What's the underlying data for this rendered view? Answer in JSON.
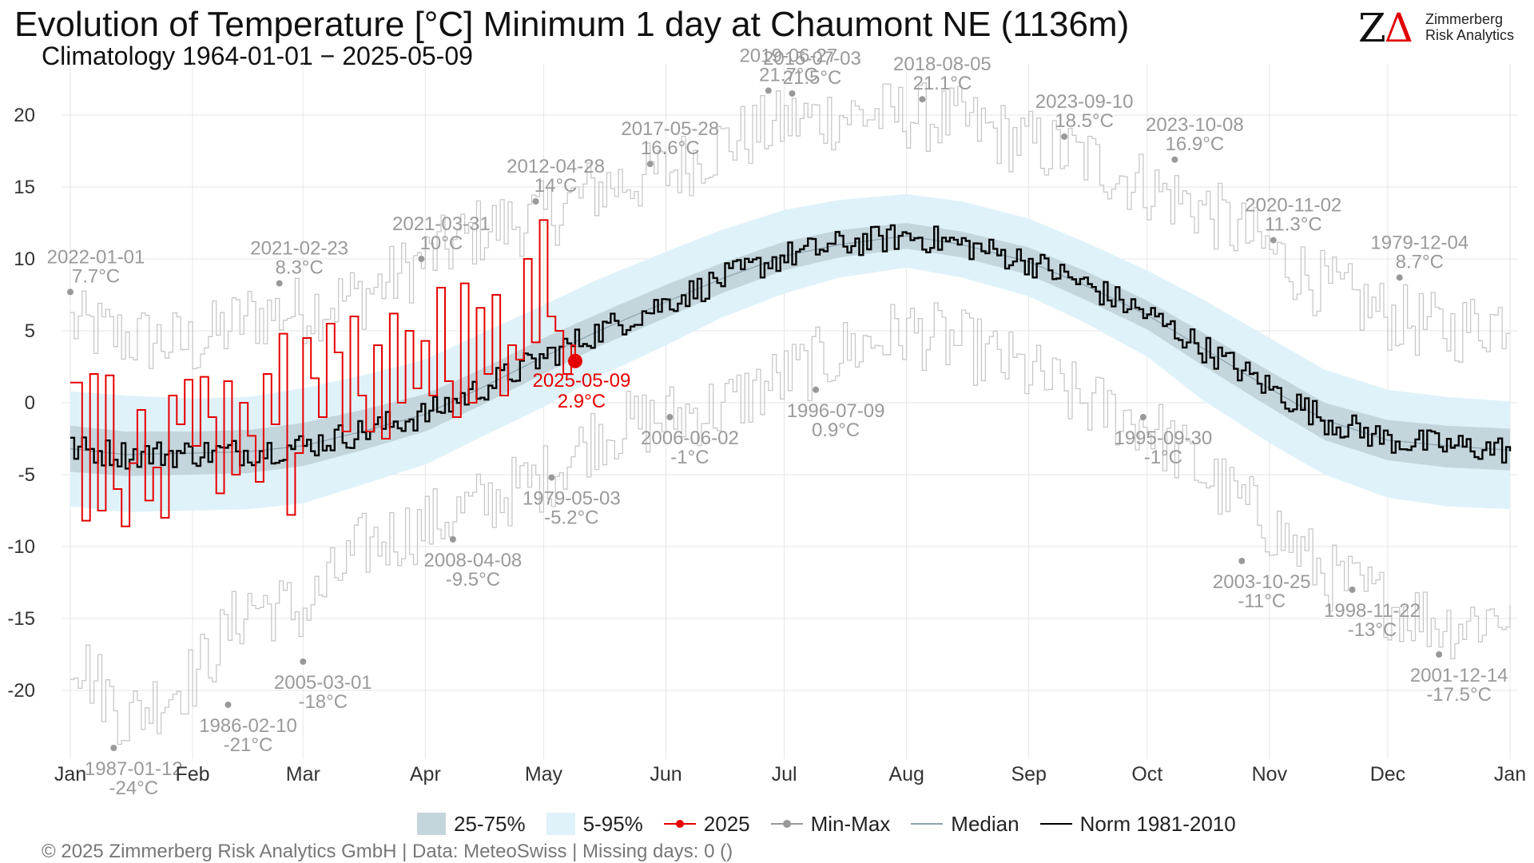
{
  "header": {
    "title": "Evolution of Temperature [°C] Minimum 1 day at Chaumont  NE (1136m)",
    "subtitle": "Climatology 1964-01-01 − 2025-05-09"
  },
  "logo": {
    "mark_left": "Z",
    "mark_right": "Δ",
    "line1": "Zimmerberg",
    "line2": "Risk Analytics"
  },
  "footer": {
    "text": "©  2025 Zimmerberg Risk Analytics GmbH | Data: MeteoSwiss | Missing days: 0 ()"
  },
  "legend": [
    {
      "label": "25-75%",
      "kind": "box",
      "color": "#c4d6dc"
    },
    {
      "label": "5-95%",
      "kind": "box",
      "color": "#dff2fa"
    },
    {
      "label": "2025",
      "kind": "pointline",
      "color": "#e60000"
    },
    {
      "label": "Min-Max",
      "kind": "pointline",
      "color": "#999999"
    },
    {
      "label": "Median",
      "kind": "line",
      "color": "#8da1ad"
    },
    {
      "label": "Norm 1981-2010",
      "kind": "line",
      "color": "#000000"
    }
  ],
  "chart_data": {
    "type": "line",
    "x_unit": "day of year",
    "ylim": [
      -24.5,
      23
    ],
    "xlim": [
      1,
      366
    ],
    "grid": true,
    "legend_position": "bottom",
    "y_ticks": [
      20,
      15,
      10,
      5,
      0,
      -5,
      -10,
      -15,
      -20
    ],
    "x_ticks": [
      {
        "label": "Jan",
        "day": 1
      },
      {
        "label": "Feb",
        "day": 32
      },
      {
        "label": "Mar",
        "day": 60
      },
      {
        "label": "Apr",
        "day": 91
      },
      {
        "label": "May",
        "day": 121
      },
      {
        "label": "Jun",
        "day": 152
      },
      {
        "label": "Jul",
        "day": 182
      },
      {
        "label": "Aug",
        "day": 213
      },
      {
        "label": "Sep",
        "day": 244
      },
      {
        "label": "Oct",
        "day": 274
      },
      {
        "label": "Nov",
        "day": 305
      },
      {
        "label": "Dec",
        "day": 335
      },
      {
        "label": "Jan",
        "day": 366
      }
    ],
    "climatology_anchors": {
      "day": [
        1,
        15,
        32,
        46,
        60,
        75,
        91,
        105,
        121,
        135,
        152,
        166,
        182,
        196,
        213,
        227,
        244,
        258,
        274,
        288,
        305,
        319,
        335,
        350,
        366
      ],
      "median": [
        -3.2,
        -3.6,
        -3.5,
        -3.4,
        -3.0,
        -2.0,
        -0.8,
        1.0,
        3.2,
        5.0,
        7.0,
        8.6,
        10.2,
        11.0,
        11.6,
        11.0,
        9.8,
        8.2,
        6.1,
        3.8,
        1.0,
        -1.2,
        -2.6,
        -3.0,
        -3.3
      ],
      "q25": [
        -4.8,
        -5.1,
        -5.0,
        -4.9,
        -4.4,
        -3.3,
        -2.0,
        -0.2,
        2.0,
        3.9,
        5.9,
        7.6,
        9.2,
        10.1,
        10.7,
        10.1,
        8.9,
        7.2,
        5.1,
        2.6,
        -0.3,
        -2.6,
        -4.0,
        -4.5,
        -4.7
      ],
      "q75": [
        -1.6,
        -2.0,
        -2.0,
        -1.9,
        -1.4,
        -0.5,
        0.6,
        2.3,
        4.5,
        6.2,
        8.2,
        9.7,
        11.2,
        12.0,
        12.5,
        11.9,
        10.8,
        9.2,
        7.1,
        4.9,
        2.2,
        0.0,
        -1.2,
        -1.6,
        -1.8
      ],
      "p5": [
        -7.2,
        -7.6,
        -7.5,
        -7.4,
        -7.0,
        -5.7,
        -4.3,
        -2.4,
        -0.3,
        1.8,
        4.0,
        5.9,
        7.6,
        8.7,
        9.4,
        8.7,
        7.4,
        5.6,
        3.2,
        0.2,
        -2.8,
        -5.0,
        -6.6,
        -7.2,
        -7.4
      ],
      "p95": [
        0.8,
        0.5,
        0.3,
        0.4,
        1.0,
        1.9,
        3.0,
        4.8,
        6.8,
        8.6,
        10.5,
        12.0,
        13.4,
        14.1,
        14.5,
        14.0,
        12.8,
        11.2,
        9.2,
        7.2,
        4.5,
        2.3,
        0.9,
        0.4,
        0.1
      ],
      "min": [
        -17.2,
        -22.0,
        -19.0,
        -14.0,
        -14.5,
        -10.0,
        -8.5,
        -7.0,
        -5.2,
        -2.0,
        -1.0,
        -0.3,
        1.8,
        3.5,
        5.0,
        4.0,
        2.0,
        0.0,
        -1.5,
        -5.0,
        -8.5,
        -12.0,
        -14.0,
        -15.5,
        -14.5
      ],
      "max": [
        5.5,
        4.5,
        4.0,
        6.0,
        6.5,
        7.5,
        10.0,
        12.0,
        13.0,
        15.0,
        16.0,
        18.0,
        19.5,
        20.0,
        20.0,
        19.5,
        18.0,
        17.0,
        15.0,
        13.5,
        10.5,
        8.0,
        6.0,
        5.0,
        6.0
      ]
    },
    "series_2025": {
      "day": [
        1,
        4,
        6,
        8,
        10,
        12,
        14,
        16,
        18,
        20,
        22,
        24,
        26,
        28,
        30,
        32,
        34,
        36,
        38,
        40,
        42,
        44,
        46,
        48,
        50,
        52,
        54,
        56,
        58,
        60,
        62,
        64,
        66,
        68,
        70,
        72,
        74,
        76,
        78,
        80,
        82,
        84,
        86,
        88,
        90,
        92,
        94,
        96,
        98,
        100,
        102,
        104,
        106,
        108,
        110,
        112,
        114,
        116,
        118,
        120,
        122,
        124,
        126,
        128,
        129
      ],
      "value": [
        1.4,
        -8.2,
        2.0,
        -7.5,
        1.9,
        -6.0,
        -8.6,
        -4.2,
        -0.5,
        -6.8,
        -4.5,
        -8.0,
        0.5,
        -1.5,
        1.6,
        -3.0,
        1.8,
        -1.0,
        -6.3,
        1.5,
        -5.0,
        0.0,
        -2.3,
        -5.5,
        2.0,
        -1.5,
        4.8,
        -7.8,
        -3.5,
        4.5,
        1.7,
        -1.0,
        5.5,
        3.5,
        -2.0,
        6.0,
        0.5,
        -2.0,
        4.0,
        -2.5,
        6.2,
        0.0,
        5.0,
        1.0,
        4.3,
        0.5,
        8.0,
        1.5,
        -1.0,
        8.3,
        0.0,
        6.6,
        2.0,
        7.5,
        0.5,
        4.0,
        3.0,
        10.0,
        4.2,
        12.7,
        6.0,
        5.0,
        2.0,
        4.0,
        2.9
      ]
    },
    "current_point": {
      "day": 129,
      "value": 2.9,
      "date_label": "2025-05-09",
      "value_label": "2.9°C"
    },
    "record_annotations": [
      {
        "date": "2022-01-01",
        "value_label": "7.7°C",
        "day": 1,
        "value": 7.7,
        "kind": "max"
      },
      {
        "date": "2021-02-23",
        "value_label": "8.3°C",
        "day": 54,
        "value": 8.3,
        "kind": "max"
      },
      {
        "date": "2021-03-31",
        "value_label": "10°C",
        "day": 90,
        "value": 10.0,
        "kind": "max"
      },
      {
        "date": "2012-04-28",
        "value_label": "14°C",
        "day": 119,
        "value": 14.0,
        "kind": "max"
      },
      {
        "date": "2017-05-28",
        "value_label": "16.6°C",
        "day": 148,
        "value": 16.6,
        "kind": "max"
      },
      {
        "date": "2019-06-27",
        "value_label": "21.7°C",
        "day": 178,
        "value": 21.7,
        "kind": "max"
      },
      {
        "date": "2015-07-03",
        "value_label": "21.5°C",
        "day": 184,
        "value": 21.5,
        "kind": "max"
      },
      {
        "date": "2018-08-05",
        "value_label": "21.1°C",
        "day": 217,
        "value": 21.1,
        "kind": "max"
      },
      {
        "date": "2023-09-10",
        "value_label": "18.5°C",
        "day": 253,
        "value": 18.5,
        "kind": "max"
      },
      {
        "date": "2023-10-08",
        "value_label": "16.9°C",
        "day": 281,
        "value": 16.9,
        "kind": "max"
      },
      {
        "date": "2020-11-02",
        "value_label": "11.3°C",
        "day": 306,
        "value": 11.3,
        "kind": "max"
      },
      {
        "date": "1979-12-04",
        "value_label": "8.7°C",
        "day": 338,
        "value": 8.7,
        "kind": "max"
      },
      {
        "date": "1987-01-12",
        "value_label": "-24°C",
        "day": 12,
        "value": -24.0,
        "kind": "min"
      },
      {
        "date": "1986-02-10",
        "value_label": "-21°C",
        "day": 41,
        "value": -21.0,
        "kind": "min"
      },
      {
        "date": "2005-03-01",
        "value_label": "-18°C",
        "day": 60,
        "value": -18.0,
        "kind": "min"
      },
      {
        "date": "2008-04-08",
        "value_label": "-9.5°C",
        "day": 98,
        "value": -9.5,
        "kind": "min"
      },
      {
        "date": "1979-05-03",
        "value_label": "-5.2°C",
        "day": 123,
        "value": -5.2,
        "kind": "min"
      },
      {
        "date": "2006-06-02",
        "value_label": "-1°C",
        "day": 153,
        "value": -1.0,
        "kind": "min"
      },
      {
        "date": "1996-07-09",
        "value_label": "0.9°C",
        "day": 190,
        "value": 0.9,
        "kind": "min"
      },
      {
        "date": "1995-09-30",
        "value_label": "-1°C",
        "day": 273,
        "value": -1.0,
        "kind": "min"
      },
      {
        "date": "2003-10-25",
        "value_label": "-11°C",
        "day": 298,
        "value": -11.0,
        "kind": "min"
      },
      {
        "date": "1998-11-22",
        "value_label": "-13°C",
        "day": 326,
        "value": -13.0,
        "kind": "min"
      },
      {
        "date": "2001-12-14",
        "value_label": "-17.5°C",
        "day": 348,
        "value": -17.5,
        "kind": "min"
      }
    ]
  }
}
